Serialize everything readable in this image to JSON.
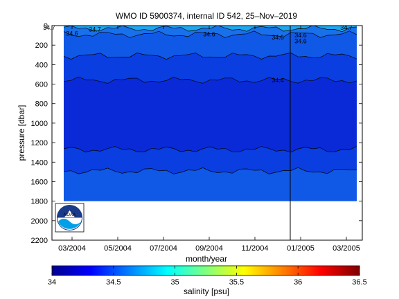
{
  "chart_data": {
    "type": "heatmap",
    "title": "WMO ID 5900374, internal ID 542, 25–Nov–2019",
    "xlabel": "month/year",
    "ylabel": "pressure [dbar]",
    "x_ticks": [
      "03/2004",
      "05/2004",
      "07/2004",
      "09/2004",
      "11/2004",
      "01/2005",
      "03/2005"
    ],
    "y_ticks": [
      "0",
      "200",
      "400",
      "600",
      "800",
      "1000",
      "1200",
      "1400",
      "1600",
      "1800",
      "2000",
      "2200"
    ],
    "ylim": [
      0,
      2200
    ],
    "y_reversed": true,
    "data_pressure_range": [
      0,
      1800
    ],
    "vertical_marker_date": "12/2004",
    "layers": [
      {
        "salinity": 34.7,
        "pressure_top": 0,
        "pressure_bottom": 30,
        "color": "#1ea6ee"
      },
      {
        "salinity": 34.6,
        "pressure_top": 30,
        "pressure_bottom": 90,
        "color": "#1870ea"
      },
      {
        "salinity": 34.5,
        "pressure_top": 90,
        "pressure_bottom": 310,
        "color": "#1058e6"
      },
      {
        "salinity": 34.4,
        "pressure_top": 310,
        "pressure_bottom": 560,
        "color": "#0a3ee0"
      },
      {
        "salinity": 34.3,
        "pressure_top": 560,
        "pressure_bottom": 1270,
        "color": "#0a2ad8"
      },
      {
        "salinity": 34.4,
        "pressure_top": 1270,
        "pressure_bottom": 1490,
        "color": "#0a3ee0"
      },
      {
        "salinity": 34.5,
        "pressure_top": 1490,
        "pressure_bottom": 1800,
        "color": "#1058e6"
      }
    ],
    "contour_labels": [
      {
        "text": "34.7",
        "date": "02/2004",
        "pressure": 20
      },
      {
        "text": "34.6",
        "date": "03/2004",
        "pressure": 80
      },
      {
        "text": "34.7",
        "date": "04/2004",
        "pressure": 40
      },
      {
        "text": "34.6",
        "date": "09/2004",
        "pressure": 90
      },
      {
        "text": "34.6",
        "date": "12/2004",
        "pressure": 120
      },
      {
        "text": "34.6",
        "date": "01/2005",
        "pressure": 100
      },
      {
        "text": "34.6",
        "date": "01/2005",
        "pressure": 160
      },
      {
        "text": "34.7",
        "date": "03/2005",
        "pressure": 20
      },
      {
        "text": "34.4",
        "date": "12/2004",
        "pressure": 560
      }
    ],
    "colorbar": {
      "label": "salinity [psu]",
      "ticks": [
        "34",
        "34.5",
        "35",
        "35.5",
        "36",
        "36.5"
      ],
      "range": [
        34,
        36.5
      ],
      "colormap": "jet"
    },
    "logo": "NOAA"
  }
}
